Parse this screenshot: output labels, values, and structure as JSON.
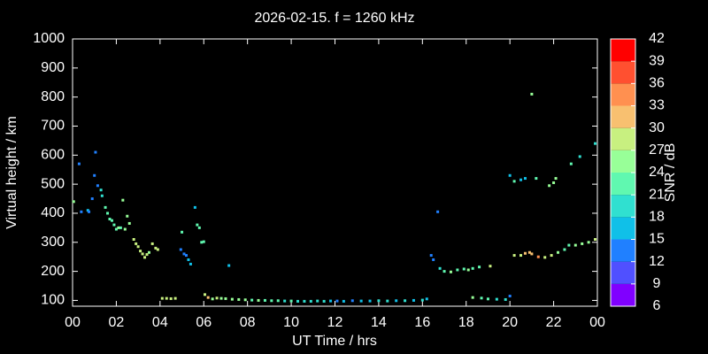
{
  "chart_data": {
    "type": "scatter",
    "title": "2026-02-15. f = 1260 kHz",
    "x_label": "UT Time / hrs",
    "y_label": "Virtual height / km",
    "xlim": [
      0,
      24
    ],
    "xticks": [
      {
        "value": 0,
        "label": "00"
      },
      {
        "value": 2,
        "label": "02"
      },
      {
        "value": 4,
        "label": "04"
      },
      {
        "value": 6,
        "label": "06"
      },
      {
        "value": 8,
        "label": "08"
      },
      10,
      12,
      14,
      16,
      18,
      20,
      22,
      {
        "value": 24,
        "label": "00"
      }
    ],
    "ylim": [
      80,
      1000
    ],
    "yticks": [
      100,
      200,
      300,
      400,
      500,
      600,
      700,
      800,
      900,
      1000
    ],
    "x": [
      0.05,
      0.3,
      0.4,
      0.7,
      0.75,
      0.9,
      1.0,
      1.05,
      1.15,
      1.3,
      1.35,
      1.5,
      1.6,
      1.7,
      1.8,
      1.9,
      2.0,
      2.1,
      2.2,
      2.3,
      2.4,
      2.5,
      2.6,
      2.8,
      2.9,
      3.0,
      3.1,
      3.2,
      3.3,
      3.4,
      3.5,
      3.65,
      3.8,
      3.9,
      4.1,
      4.3,
      4.5,
      4.7,
      4.95,
      5.1,
      5.2,
      5.3,
      5.4,
      5.0,
      5.6,
      5.7,
      5.8,
      5.9,
      6.0,
      6.05,
      6.2,
      6.4,
      6.6,
      6.8,
      7.0,
      7.15,
      7.3,
      7.6,
      7.9,
      8.2,
      8.5,
      8.8,
      9.1,
      9.4,
      9.7,
      10.0,
      10.3,
      10.6,
      10.9,
      11.2,
      11.5,
      11.8,
      12.1,
      12.4,
      12.8,
      13.2,
      13.6,
      14.0,
      14.4,
      14.8,
      15.2,
      15.6,
      16.0,
      16.2,
      16.4,
      16.5,
      16.7,
      16.8,
      17.0,
      17.3,
      17.6,
      17.9,
      18.1,
      18.3,
      18.6,
      19.1,
      18.3,
      18.7,
      19.0,
      19.4,
      19.8,
      20.0,
      20.0,
      20.2,
      20.5,
      20.7,
      21.2,
      21.8,
      22.0,
      22.1,
      22.8,
      23.2,
      23.9,
      20.2,
      20.5,
      20.7,
      20.9,
      21.0,
      21.3,
      21.6,
      21.9,
      22.2,
      22.5,
      22.7,
      23.0,
      23.3,
      23.6,
      23.9,
      21.0
    ],
    "values": [
      440,
      570,
      405,
      410,
      405,
      450,
      530,
      610,
      495,
      480,
      460,
      420,
      400,
      380,
      375,
      360,
      345,
      350,
      350,
      445,
      345,
      390,
      365,
      310,
      295,
      285,
      270,
      260,
      248,
      258,
      265,
      295,
      280,
      275,
      107,
      107,
      106,
      107,
      275,
      260,
      255,
      240,
      225,
      335,
      420,
      360,
      350,
      300,
      302,
      120,
      110,
      105,
      108,
      107,
      106,
      220,
      104,
      103,
      102,
      101,
      100,
      100,
      99,
      99,
      98,
      98,
      97,
      97,
      97,
      98,
      97,
      98,
      98,
      97,
      99,
      98,
      98,
      99,
      98,
      99,
      99,
      100,
      101,
      105,
      255,
      240,
      405,
      210,
      200,
      198,
      205,
      208,
      205,
      210,
      215,
      218,
      110,
      108,
      105,
      104,
      103,
      115,
      530,
      510,
      515,
      520,
      520,
      495,
      505,
      520,
      570,
      595,
      640,
      255,
      255,
      262,
      265,
      260,
      250,
      248,
      255,
      265,
      275,
      290,
      290,
      295,
      300,
      310,
      810
    ],
    "snr": [
      24,
      12,
      12,
      15,
      12,
      12,
      12,
      12,
      12,
      18,
      18,
      21,
      21,
      21,
      21,
      21,
      21,
      24,
      21,
      24,
      24,
      24,
      24,
      27,
      27,
      27,
      27,
      27,
      27,
      27,
      24,
      27,
      27,
      27,
      27,
      27,
      27,
      27,
      12,
      12,
      12,
      15,
      15,
      21,
      15,
      21,
      21,
      21,
      21,
      27,
      30,
      24,
      27,
      24,
      24,
      15,
      24,
      24,
      24,
      21,
      24,
      21,
      21,
      21,
      18,
      21,
      18,
      18,
      18,
      18,
      18,
      15,
      12,
      15,
      12,
      15,
      15,
      18,
      18,
      15,
      18,
      15,
      18,
      15,
      12,
      12,
      12,
      18,
      21,
      24,
      21,
      21,
      24,
      21,
      21,
      27,
      24,
      21,
      21,
      18,
      18,
      12,
      15,
      21,
      15,
      15,
      21,
      24,
      24,
      24,
      21,
      18,
      18,
      27,
      27,
      30,
      30,
      30,
      33,
      27,
      27,
      24,
      21,
      21,
      24,
      24,
      24,
      27,
      24
    ],
    "colorbar": {
      "label": "SNR / dB",
      "ticks": [
        6,
        9,
        12,
        15,
        18,
        21,
        24,
        27,
        30,
        33,
        36,
        39,
        42
      ],
      "colors": [
        "#8000ff",
        "#5050ff",
        "#2080ff",
        "#10c0e8",
        "#30e0d0",
        "#60f8b0",
        "#98ff98",
        "#c8f080",
        "#f8c070",
        "#ff9050",
        "#ff5030",
        "#ff0000"
      ]
    }
  }
}
